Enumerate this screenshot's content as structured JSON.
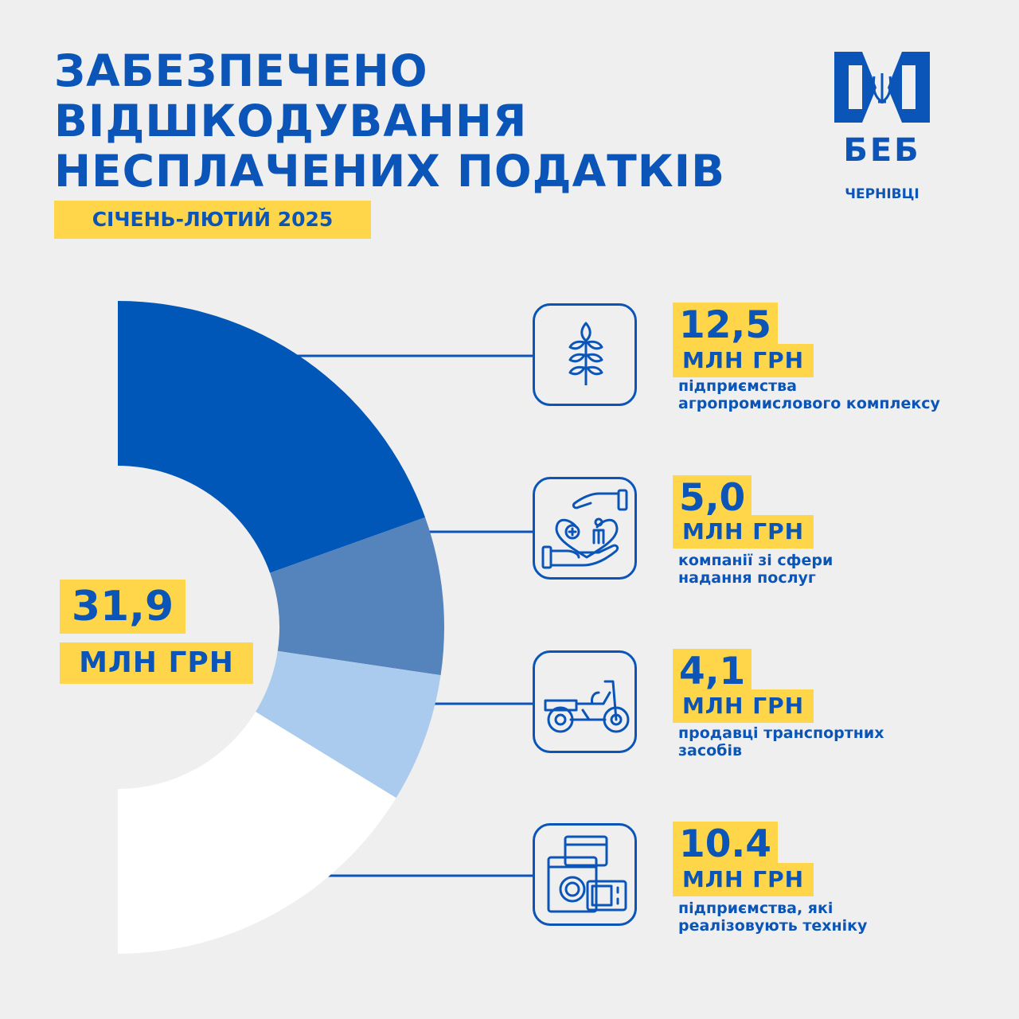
{
  "title_lines": [
    "ЗАБЕЗПЕЧЕНО",
    "ВІДШКОДУВАННЯ",
    "НЕСПЛАЧЕНИХ ПОДАТКІВ"
  ],
  "period": "СІЧЕНЬ-ЛЮТИЙ 2025",
  "logo": {
    "text": "БЕБ",
    "city": "ЧЕРНІВЦІ",
    "icon": "trident-emblem-icon"
  },
  "total": {
    "value": "31,9",
    "unit": "МЛН ГРН"
  },
  "colors": {
    "primary": "#0b55b8",
    "highlight": "#ffd54a",
    "background": "#efefef",
    "slices": [
      "#0057b8",
      "#5583bb",
      "#aacbee",
      "#ffffff"
    ]
  },
  "items": [
    {
      "value": "12,5",
      "unit": "МЛН ГРН",
      "desc": [
        "підприємства",
        "агропромислового комплексу"
      ],
      "icon": "wheat-icon"
    },
    {
      "value": "5,0",
      "unit": "МЛН ГРН",
      "desc": [
        "компанії зі сфери",
        "надання послуг"
      ],
      "icon": "care-hands-icon"
    },
    {
      "value": "4,1",
      "unit": "МЛН ГРН",
      "desc": [
        "продавці транспортних",
        "засобів"
      ],
      "icon": "motorcycle-icon"
    },
    {
      "value": "10.4",
      "unit": "МЛН ГРН",
      "desc": [
        "підприємства, які",
        "реалізовують техніку"
      ],
      "icon": "appliances-icon"
    }
  ],
  "chart_data": {
    "type": "pie",
    "shape": "half-donut",
    "total": 31.9,
    "unit": "МЛН ГРН",
    "categories": [
      "підприємства агропромислового комплексу",
      "компанії зі сфери надання послуг",
      "продавці транспортних засобів",
      "підприємства, які реалізовують техніку"
    ],
    "values": [
      12.5,
      5.0,
      4.1,
      10.4
    ]
  }
}
